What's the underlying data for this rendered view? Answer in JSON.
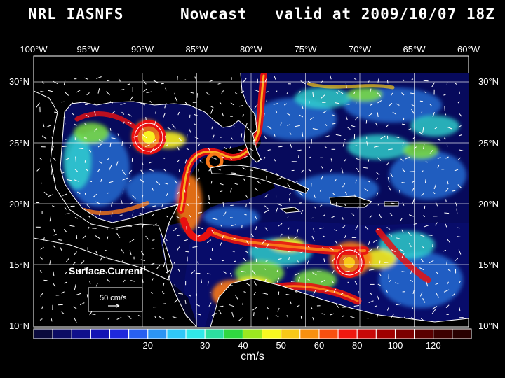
{
  "header": {
    "source": "NRL IASNFS",
    "product": "Nowcast",
    "valid": "valid at 2009/10/07 18Z"
  },
  "map": {
    "title_label": "Surface Current",
    "scale_label": "50 cm/s",
    "lon_labels": [
      "100°W",
      "95°W",
      "90°W",
      "85°W",
      "80°W",
      "75°W",
      "70°W",
      "65°W",
      "60°W"
    ],
    "lat_labels": [
      "30°N",
      "25°N",
      "20°N",
      "15°N",
      "10°N"
    ]
  },
  "colorbar": {
    "unit": "cm/s",
    "tick_labels": [
      "20",
      "30",
      "40",
      "50",
      "60",
      "80",
      "100",
      "120"
    ],
    "tick_slots": [
      6,
      9,
      11,
      13,
      15,
      17,
      19,
      21
    ],
    "colors": [
      "#0a0a3c",
      "#0c0c64",
      "#10108c",
      "#1414b4",
      "#1e28dc",
      "#2860f0",
      "#2c94f4",
      "#30c8f8",
      "#30e8e8",
      "#2ce0a0",
      "#30d840",
      "#9ce820",
      "#f8f820",
      "#f8c818",
      "#f89010",
      "#f85010",
      "#f01810",
      "#c80808",
      "#a00000",
      "#7c0000",
      "#5a0000",
      "#3c0000",
      "#280000"
    ]
  }
}
